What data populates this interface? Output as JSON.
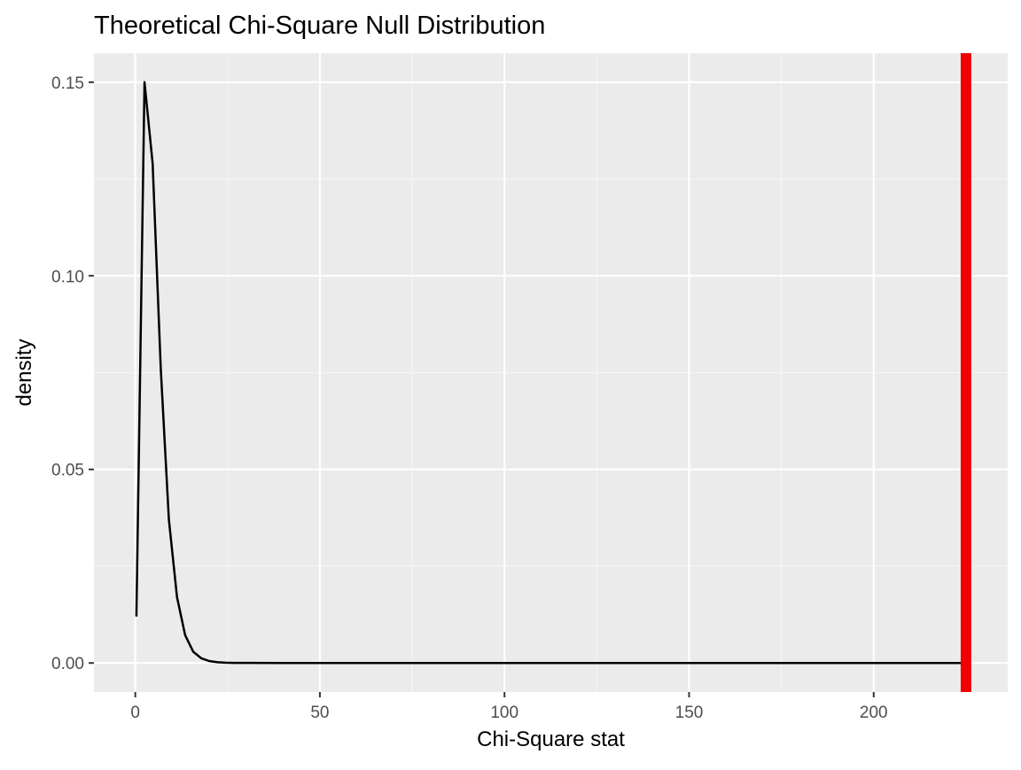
{
  "chart_data": {
    "type": "line",
    "title": "Theoretical Chi-Square Null Distribution",
    "xlabel": "Chi-Square stat",
    "ylabel": "density",
    "xlim": [
      -11.2,
      236.3
    ],
    "ylim": [
      -0.0075,
      0.1575
    ],
    "x_ticks": [
      0,
      50,
      100,
      150,
      200
    ],
    "x_tick_labels": [
      "0",
      "50",
      "100",
      "150",
      "200"
    ],
    "y_ticks": [
      0.0,
      0.05,
      0.1,
      0.15
    ],
    "y_tick_labels": [
      "0.00",
      "0.05",
      "0.10",
      "0.15"
    ],
    "grid": true,
    "colors": {
      "panel_background": "#ebebeb",
      "grid_major": "#ffffff",
      "grid_minor": "#f5f5f5",
      "line": "#000000",
      "observed_stat": "#ee0000"
    },
    "series": [
      {
        "x": [
          0.3,
          2.5,
          4.7,
          6.9,
          9.1,
          11.3,
          13.5,
          15.7,
          17.9,
          20.1,
          22.3,
          24.5,
          26.7,
          30,
          40,
          60,
          100,
          150,
          200,
          225
        ],
        "values": [
          0.012,
          0.15,
          0.129,
          0.076,
          0.037,
          0.017,
          0.0072,
          0.0029,
          0.0012,
          0.00048,
          0.00019,
          7e-05,
          3e-05,
          1e-05,
          0.0,
          0.0,
          0.0,
          0.0,
          0.0,
          0.0
        ]
      }
    ],
    "vline": {
      "x": 225,
      "color": "#ee0000"
    }
  }
}
